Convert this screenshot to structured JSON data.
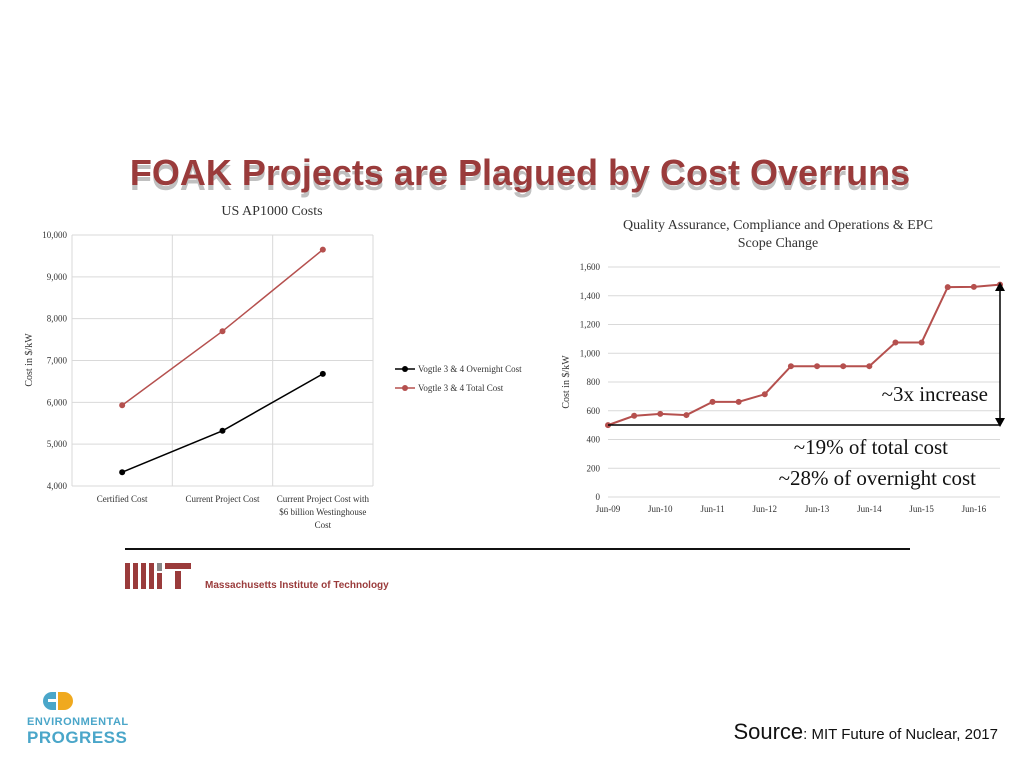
{
  "slide": {
    "title": "FOAK Projects are Plagued by Cost Overruns",
    "mit_name": "Massachusetts Institute of Technology",
    "ep_line1": "ENVIRONMENTAL",
    "ep_line2": "PROGRESS",
    "source_label": "Source",
    "source_text": ": MIT Future of Nuclear, 2017"
  },
  "colors": {
    "title": "#9a3b3b",
    "overnight": "#000000",
    "total": "#b5504e",
    "grid": "#d9d9d9",
    "ep_blue": "#4aa6c9",
    "ep_orange": "#f0a91e"
  },
  "chart_data": [
    {
      "type": "line",
      "title": "US AP1000 Costs",
      "ylabel": "Cost in $/kW",
      "xlabel": "",
      "categories": [
        "Certified Cost",
        "Current Project Cost",
        "Current Project Cost with $6 billion Westinghouse Cost"
      ],
      "category_lines": [
        [
          "Certified Cost"
        ],
        [
          "Current Project Cost"
        ],
        [
          "Current Project Cost with",
          "$6 billion Westinghouse",
          "Cost"
        ]
      ],
      "ylim": [
        4000,
        10000
      ],
      "yticks": [
        4000,
        5000,
        6000,
        7000,
        8000,
        9000,
        10000
      ],
      "ytick_labels": [
        "4,000",
        "5,000",
        "6,000",
        "7,000",
        "8,000",
        "9,000",
        "10,000"
      ],
      "grid": true,
      "legend_position": "right",
      "series": [
        {
          "name": "Vogtle 3 & 4 Overnight Cost",
          "values": [
            4330,
            5320,
            6680
          ]
        },
        {
          "name": "Vogtle 3 & 4 Total Cost",
          "values": [
            5930,
            7700,
            9650
          ]
        }
      ]
    },
    {
      "type": "line",
      "title": "Quality Assurance, Compliance and Operations & EPC Scope Change",
      "title_lines": [
        "Quality Assurance, Compliance and Operations & EPC",
        "Scope Change"
      ],
      "ylabel": "Cost in $/kW",
      "xlabel": "",
      "x": [
        "Jun-09",
        "Dec-09",
        "Jun-10",
        "Dec-10",
        "Jun-11",
        "Dec-11",
        "Jun-12",
        "Dec-12",
        "Jun-13",
        "Dec-13",
        "Jun-14",
        "Dec-14",
        "Jun-15",
        "Dec-15",
        "Jun-16",
        "Dec-16"
      ],
      "xtick_labels": [
        "Jun-09",
        "Jun-10",
        "Jun-11",
        "Jun-12",
        "Jun-13",
        "Jun-14",
        "Jun-15",
        "Jun-16"
      ],
      "values": [
        500,
        565,
        578,
        570,
        662,
        662,
        715,
        910,
        910,
        910,
        910,
        1075,
        1075,
        1460,
        1462,
        1477
      ],
      "ylim": [
        0,
        1600
      ],
      "yticks": [
        0,
        200,
        400,
        600,
        800,
        1000,
        1200,
        1400,
        1600
      ],
      "ytick_labels": [
        "0",
        "200",
        "400",
        "600",
        "800",
        "1,000",
        "1,200",
        "1,400",
        "1,600"
      ],
      "grid": true,
      "annotations": {
        "increase": "~3x increase",
        "share_total": "~19% of total cost",
        "share_overnight": "~28% of overnight cost"
      }
    }
  ]
}
